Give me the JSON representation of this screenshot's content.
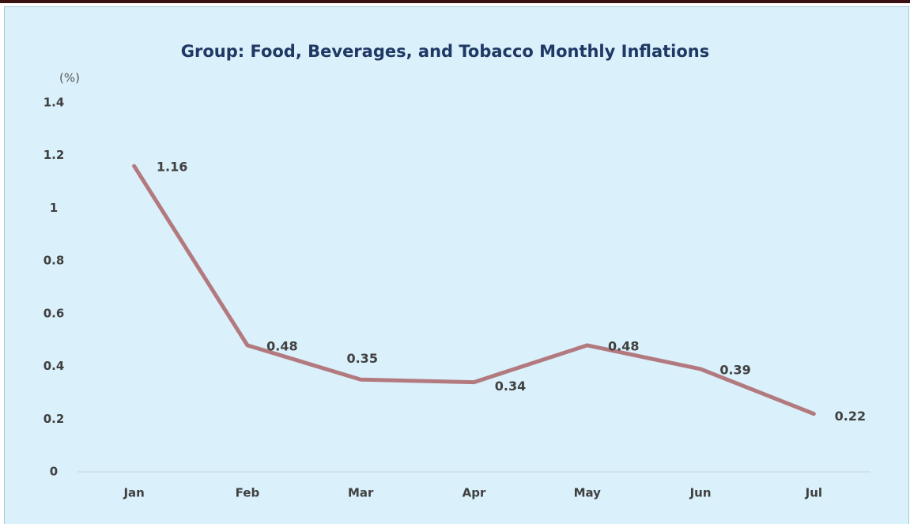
{
  "chart_data": {
    "type": "line",
    "title": "Group: Food,  Beverages, and Tobacco Monthly Inflations",
    "y_unit": "(%)",
    "categories": [
      "Jan",
      "Feb",
      "Mar",
      "Apr",
      "May",
      "Jun",
      "Jul"
    ],
    "values": [
      1.16,
      0.48,
      0.35,
      0.34,
      0.48,
      0.39,
      0.22
    ],
    "color": "#b27a7e",
    "ylim": [
      0,
      1.4
    ],
    "yticks": [
      0,
      0.2,
      0.4,
      0.6,
      0.8,
      1,
      1.2,
      1.4
    ],
    "grid": false
  }
}
